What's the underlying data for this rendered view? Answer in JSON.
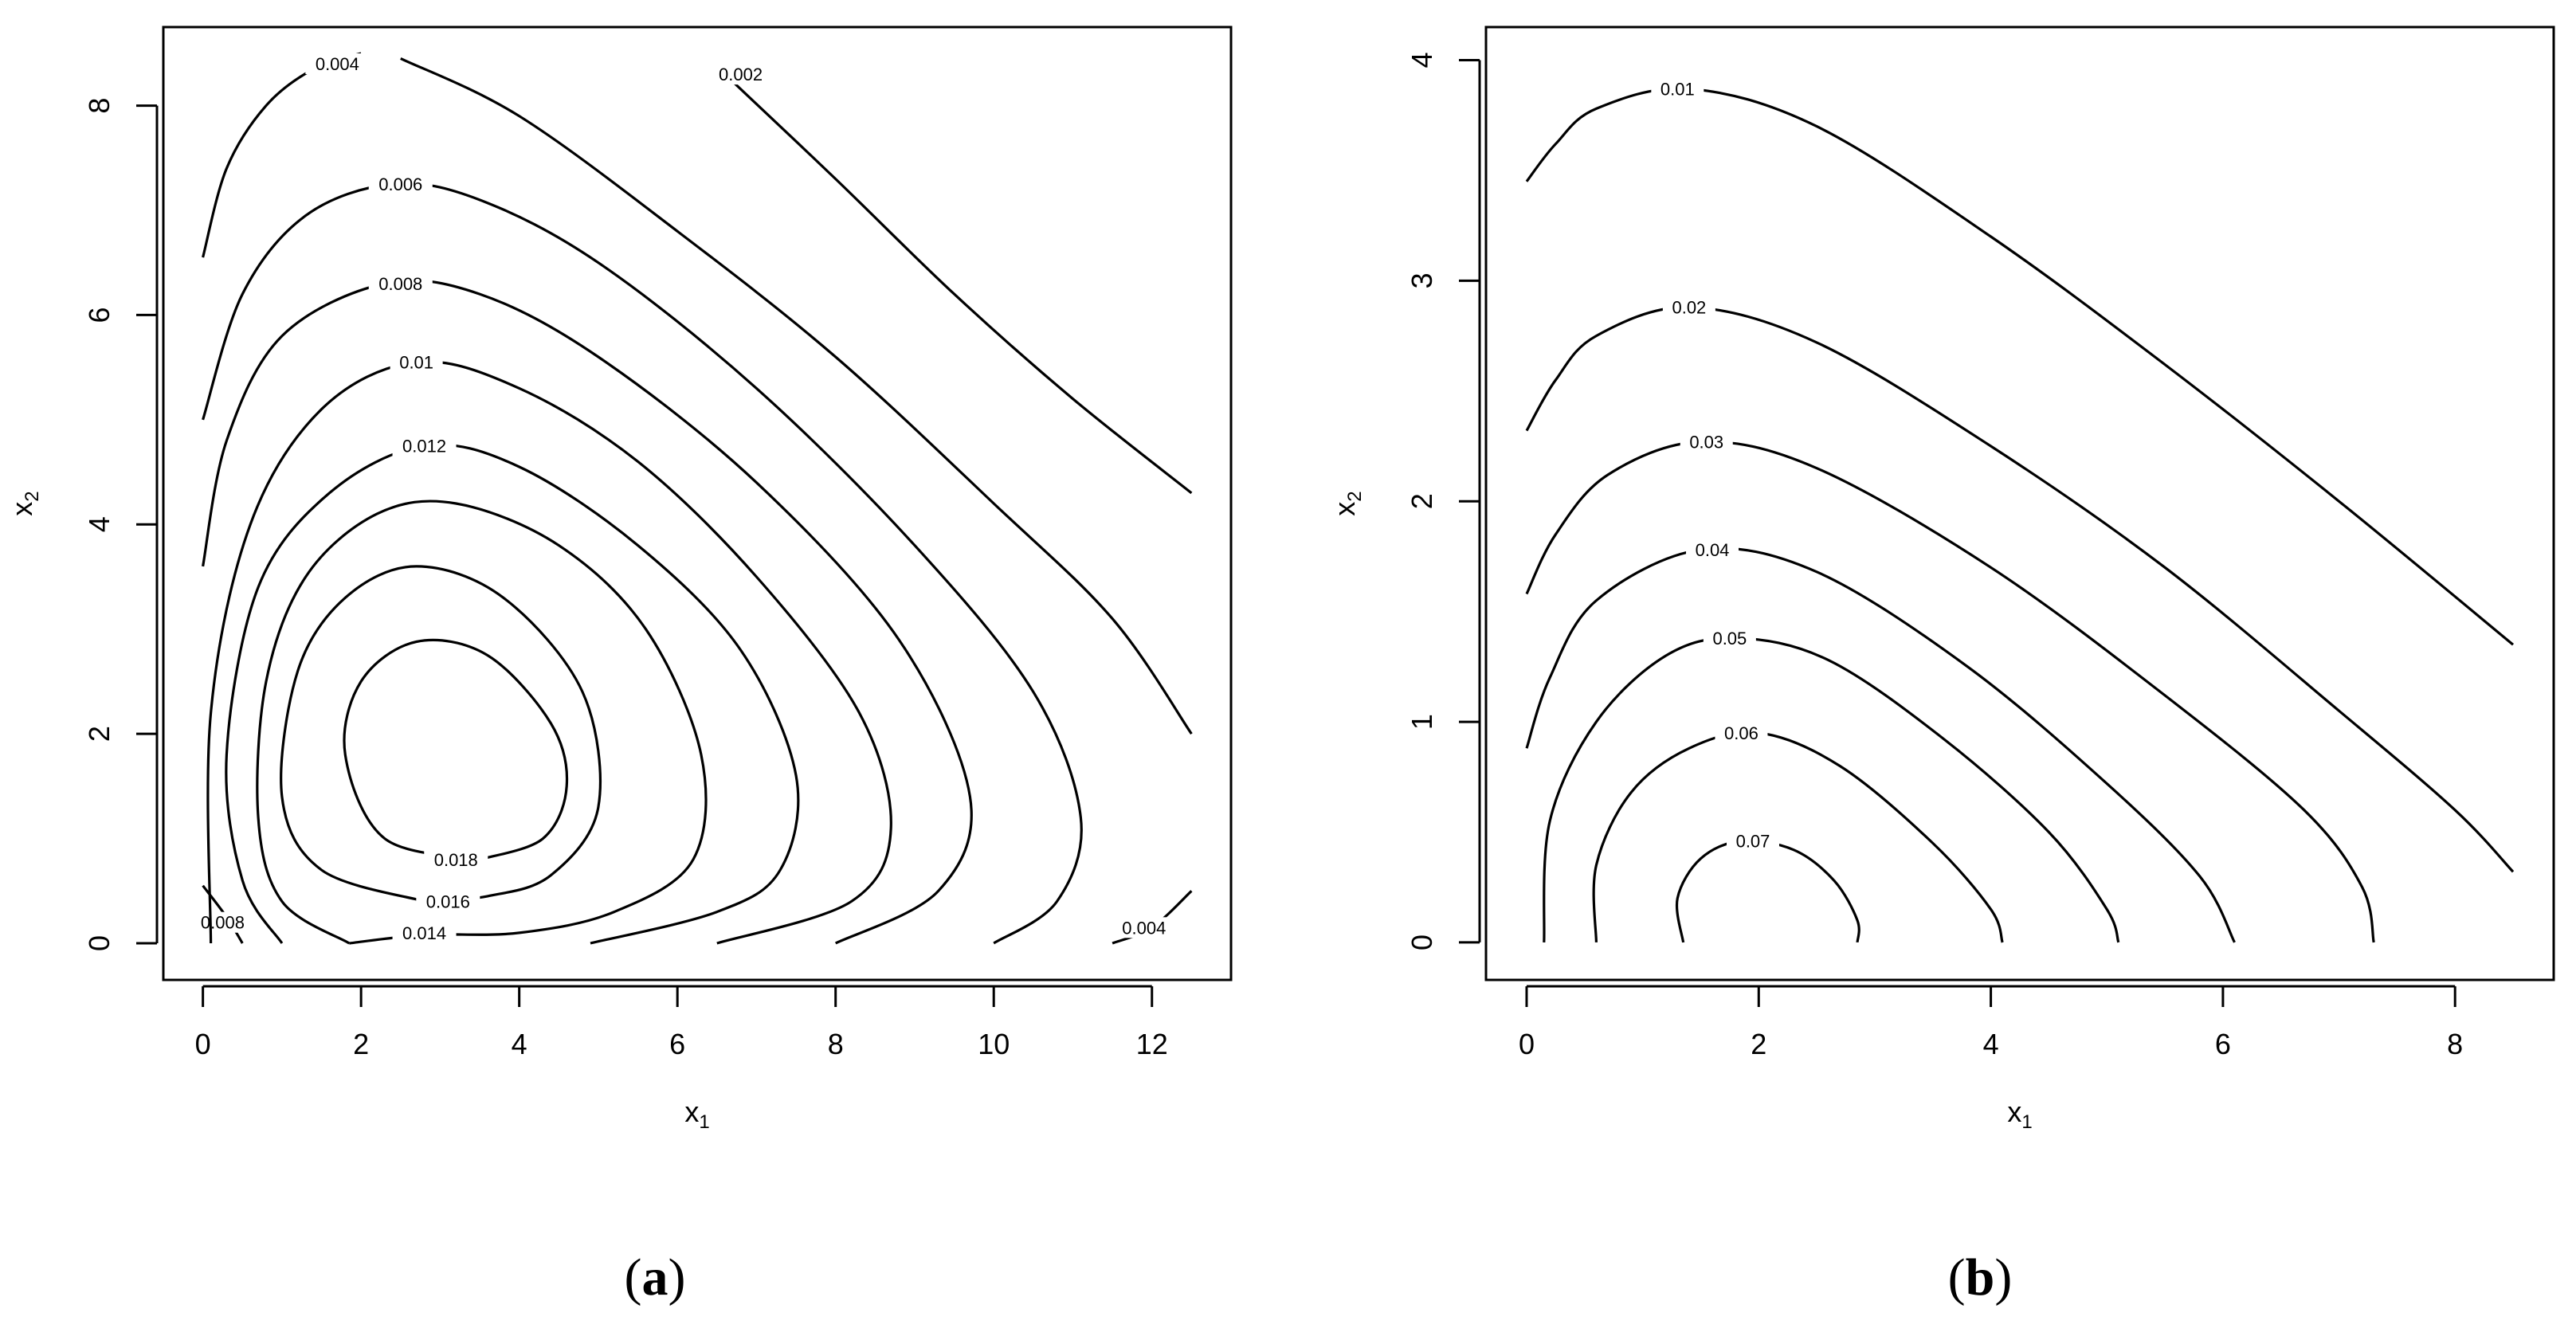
{
  "chart_data": [
    {
      "type": "contour",
      "panel_label": "(a)",
      "xlabel": "x",
      "xlabel_sub": "1",
      "ylabel": "x",
      "ylabel_sub": "2",
      "xlim": [
        -0.5,
        13.0
      ],
      "ylim": [
        -0.35,
        8.75
      ],
      "xticks": [
        0,
        2,
        4,
        6,
        8,
        10,
        12
      ],
      "yticks": [
        0,
        2,
        4,
        6,
        8
      ],
      "xtick_labels": [
        "0",
        "2",
        "4",
        "6",
        "8",
        "10",
        "12"
      ],
      "ytick_labels": [
        "0",
        "2",
        "4",
        "6",
        "8"
      ],
      "contours": [
        {
          "label": "0.002",
          "segments": [
            [
              [
                6.6,
                8.3
              ],
              [
                8.0,
                7.3
              ],
              [
                9.5,
                6.2
              ],
              [
                11.0,
                5.2
              ],
              [
                12.5,
                4.3
              ]
            ]
          ],
          "label_at": [
            6.8,
            8.3
          ]
        },
        {
          "label": "0.004",
          "segments": [
            [
              [
                0.0,
                6.55
              ],
              [
                0.3,
                7.4
              ],
              [
                0.8,
                8.0
              ],
              [
                1.4,
                8.35
              ],
              [
                2.0,
                8.5
              ]
            ],
            [
              [
                2.5,
                8.45
              ],
              [
                4.0,
                7.9
              ],
              [
                6.0,
                6.8
              ],
              [
                8.0,
                5.6
              ],
              [
                10.0,
                4.2
              ],
              [
                11.5,
                3.1
              ],
              [
                12.5,
                2.0
              ]
            ]
          ],
          "label_at": [
            1.7,
            8.4
          ]
        },
        {
          "label": "0.004",
          "segments": [
            [
              [
                12.5,
                0.5
              ],
              [
                12.0,
                0.15
              ],
              [
                11.5,
                0.0
              ]
            ]
          ],
          "label_at": [
            11.9,
            0.15
          ]
        },
        {
          "label": "0.006",
          "segments": [
            [
              [
                0.0,
                5.0
              ],
              [
                0.5,
                6.2
              ],
              [
                1.3,
                6.95
              ],
              [
                2.4,
                7.25
              ],
              [
                3.5,
                7.1
              ],
              [
                5.0,
                6.5
              ],
              [
                7.0,
                5.3
              ],
              [
                9.0,
                3.8
              ],
              [
                10.5,
                2.4
              ],
              [
                11.1,
                1.2
              ],
              [
                10.8,
                0.4
              ],
              [
                10.0,
                0.0
              ]
            ]
          ],
          "label_at": [
            2.5,
            7.25
          ]
        },
        {
          "label": "0.008",
          "segments": [
            [
              [
                0.0,
                3.6
              ],
              [
                0.3,
                4.8
              ],
              [
                1.0,
                5.8
              ],
              [
                2.3,
                6.3
              ],
              [
                3.5,
                6.2
              ],
              [
                5.0,
                5.6
              ],
              [
                7.0,
                4.4
              ],
              [
                8.8,
                2.9
              ],
              [
                9.7,
                1.4
              ],
              [
                9.3,
                0.5
              ],
              [
                8.0,
                0.0
              ]
            ]
          ],
          "label_at": [
            2.5,
            6.3
          ]
        },
        {
          "label": "0.008",
          "segments": [
            [
              [
                0.0,
                0.55
              ],
              [
                0.3,
                0.25
              ],
              [
                0.5,
                0.0
              ]
            ]
          ],
          "label_at": [
            0.25,
            0.2
          ]
        },
        {
          "label": "0.01",
          "segments": [
            [
              [
                0.1,
                0.0
              ],
              [
                0.1,
                2.2
              ],
              [
                0.6,
                4.0
              ],
              [
                1.5,
                5.1
              ],
              [
                2.7,
                5.55
              ],
              [
                4.0,
                5.3
              ],
              [
                5.5,
                4.6
              ],
              [
                7.0,
                3.5
              ],
              [
                8.3,
                2.2
              ],
              [
                8.7,
                1.1
              ],
              [
                8.2,
                0.4
              ],
              [
                6.5,
                0.0
              ]
            ]
          ],
          "label_at": [
            2.7,
            5.55
          ]
        },
        {
          "label": "0.012",
          "segments": [
            [
              [
                1.0,
                0.0
              ],
              [
                0.5,
                0.6
              ],
              [
                0.3,
                1.8
              ],
              [
                0.7,
                3.4
              ],
              [
                1.6,
                4.3
              ],
              [
                2.8,
                4.75
              ],
              [
                4.0,
                4.55
              ],
              [
                5.5,
                3.8
              ],
              [
                6.8,
                2.8
              ],
              [
                7.5,
                1.6
              ],
              [
                7.3,
                0.7
              ],
              [
                6.5,
                0.3
              ],
              [
                4.9,
                0.0
              ]
            ]
          ],
          "label_at": [
            2.8,
            4.75
          ]
        },
        {
          "label": "0.014",
          "segments": [
            [
              [
                1.85,
                0.0
              ],
              [
                1.0,
                0.4
              ],
              [
                0.7,
                1.2
              ],
              [
                0.8,
                2.5
              ],
              [
                1.3,
                3.5
              ],
              [
                2.2,
                4.1
              ],
              [
                3.2,
                4.2
              ],
              [
                4.5,
                3.8
              ],
              [
                5.6,
                3.0
              ],
              [
                6.3,
                1.8
              ],
              [
                6.2,
                0.8
              ],
              [
                5.2,
                0.3
              ],
              [
                4.0,
                0.1
              ],
              [
                2.8,
                0.08
              ],
              [
                1.85,
                0.0
              ]
            ]
          ],
          "label_at": [
            2.8,
            0.1
          ]
        },
        {
          "label": "0.016",
          "segments": [
            [
              [
                2.8,
                0.4
              ],
              [
                1.5,
                0.7
              ],
              [
                1.0,
                1.4
              ],
              [
                1.2,
                2.6
              ],
              [
                1.8,
                3.3
              ],
              [
                2.7,
                3.6
              ],
              [
                3.8,
                3.3
              ],
              [
                4.8,
                2.4
              ],
              [
                5.0,
                1.3
              ],
              [
                4.4,
                0.65
              ],
              [
                3.6,
                0.45
              ],
              [
                2.8,
                0.4
              ]
            ]
          ],
          "label_at": [
            3.1,
            0.4
          ]
        },
        {
          "label": "0.018",
          "segments": [
            [
              [
                3.5,
                0.8
              ],
              [
                2.3,
                1.0
              ],
              [
                1.8,
                1.8
              ],
              [
                2.0,
                2.5
              ],
              [
                2.7,
                2.88
              ],
              [
                3.6,
                2.75
              ],
              [
                4.4,
                2.1
              ],
              [
                4.6,
                1.5
              ],
              [
                4.3,
                1.0
              ],
              [
                3.5,
                0.8
              ]
            ]
          ],
          "label_at": [
            3.2,
            0.8
          ]
        }
      ]
    },
    {
      "type": "contour",
      "panel_label": "(b)",
      "xlabel": "x",
      "xlabel_sub": "1",
      "ylabel": "x",
      "ylabel_sub": "2",
      "xlim": [
        -0.35,
        8.85
      ],
      "ylim": [
        -0.17,
        4.15
      ],
      "xticks": [
        0,
        2,
        4,
        6,
        8
      ],
      "yticks": [
        0,
        1,
        2,
        3,
        4
      ],
      "xtick_labels": [
        "0",
        "2",
        "4",
        "6",
        "8"
      ],
      "ytick_labels": [
        "0",
        "1",
        "2",
        "3",
        "4"
      ],
      "contours": [
        {
          "label": "0.01",
          "segments": [
            [
              [
                0.0,
                3.45
              ],
              [
                0.25,
                3.62
              ],
              [
                0.6,
                3.78
              ],
              [
                1.4,
                3.87
              ],
              [
                2.5,
                3.7
              ],
              [
                4.0,
                3.2
              ],
              [
                5.5,
                2.62
              ],
              [
                7.0,
                2.0
              ],
              [
                8.5,
                1.35
              ]
            ]
          ],
          "label_at": [
            1.3,
            3.87
          ]
        },
        {
          "label": "0.02",
          "segments": [
            [
              [
                0.0,
                2.32
              ],
              [
                0.25,
                2.55
              ],
              [
                0.6,
                2.75
              ],
              [
                1.4,
                2.88
              ],
              [
                2.5,
                2.72
              ],
              [
                4.0,
                2.25
              ],
              [
                5.5,
                1.7
              ],
              [
                7.0,
                1.05
              ],
              [
                8.0,
                0.6
              ],
              [
                8.5,
                0.32
              ]
            ]
          ],
          "label_at": [
            1.4,
            2.88
          ]
        },
        {
          "label": "0.03",
          "segments": [
            [
              [
                0.0,
                1.58
              ],
              [
                0.25,
                1.85
              ],
              [
                0.7,
                2.12
              ],
              [
                1.5,
                2.27
              ],
              [
                2.5,
                2.15
              ],
              [
                4.0,
                1.7
              ],
              [
                5.5,
                1.12
              ],
              [
                6.7,
                0.6
              ],
              [
                7.2,
                0.25
              ],
              [
                7.3,
                0.0
              ]
            ]
          ],
          "label_at": [
            1.55,
            2.27
          ]
        },
        {
          "label": "0.04",
          "segments": [
            [
              [
                0.0,
                0.88
              ],
              [
                0.2,
                1.2
              ],
              [
                0.6,
                1.55
              ],
              [
                1.5,
                1.78
              ],
              [
                2.5,
                1.68
              ],
              [
                3.8,
                1.25
              ],
              [
                5.0,
                0.72
              ],
              [
                5.8,
                0.3
              ],
              [
                6.1,
                0.0
              ]
            ]
          ],
          "label_at": [
            1.6,
            1.78
          ]
        },
        {
          "label": "0.05",
          "segments": [
            [
              [
                0.15,
                0.0
              ],
              [
                0.2,
                0.55
              ],
              [
                0.6,
                1.0
              ],
              [
                1.2,
                1.3
              ],
              [
                1.8,
                1.38
              ],
              [
                2.6,
                1.28
              ],
              [
                3.6,
                0.92
              ],
              [
                4.5,
                0.5
              ],
              [
                5.0,
                0.15
              ],
              [
                5.1,
                0.0
              ]
            ]
          ],
          "label_at": [
            1.75,
            1.38
          ]
        },
        {
          "label": "0.06",
          "segments": [
            [
              [
                0.6,
                0.0
              ],
              [
                0.6,
                0.35
              ],
              [
                0.9,
                0.68
              ],
              [
                1.4,
                0.88
              ],
              [
                2.0,
                0.95
              ],
              [
                2.7,
                0.8
              ],
              [
                3.5,
                0.45
              ],
              [
                4.0,
                0.15
              ],
              [
                4.1,
                0.0
              ]
            ]
          ],
          "label_at": [
            1.85,
            0.95
          ]
        },
        {
          "label": "0.07",
          "segments": [
            [
              [
                1.35,
                0.0
              ],
              [
                1.3,
                0.2
              ],
              [
                1.5,
                0.38
              ],
              [
                1.85,
                0.46
              ],
              [
                2.3,
                0.42
              ],
              [
                2.65,
                0.28
              ],
              [
                2.85,
                0.1
              ],
              [
                2.85,
                0.0
              ]
            ]
          ],
          "label_at": [
            1.95,
            0.46
          ]
        }
      ]
    }
  ]
}
